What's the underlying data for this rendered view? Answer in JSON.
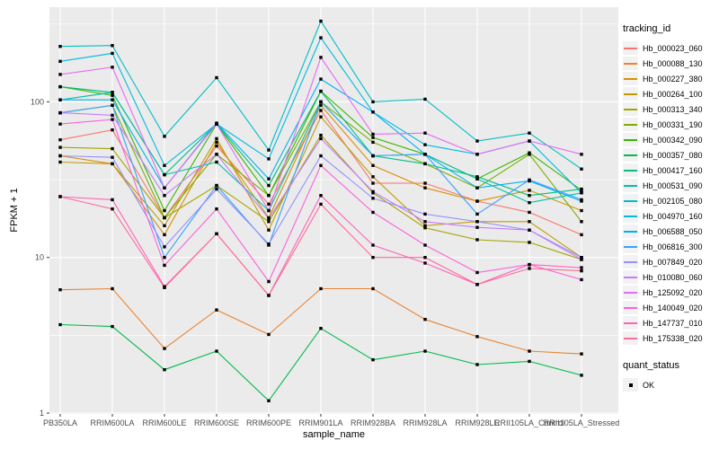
{
  "chart_data": {
    "type": "line",
    "title": "",
    "xlabel": "sample_name",
    "ylabel": "FPKM + 1",
    "y_scale": "log10",
    "ylim": [
      1,
      400
    ],
    "y_ticks": [
      1,
      10,
      100
    ],
    "y_tick_labels": [
      "1",
      "10",
      "100"
    ],
    "y_minor_ticks": [
      3.162,
      31.62,
      316.2
    ],
    "grid": "on",
    "legend_position": "right",
    "panel_bg": "#EBEBEB",
    "grid_color": "#FFFFFF",
    "axis_text_color": "#4D4D4D",
    "point_color": "#000000",
    "point_shape": "square",
    "legend_key_bg": "#F2F2F2",
    "legend_title": "tracking_id",
    "legend2": {
      "title": "quant_status",
      "items": [
        {
          "label": "OK",
          "color": "#000000",
          "shape": "square"
        }
      ]
    },
    "categories": [
      "PB350LA",
      "RRIM600LA",
      "RRIM600LE",
      "RRIM600SE",
      "RRIM600PE",
      "RRIM901LA",
      "RRIM928BA",
      "RRIM928LA",
      "RRIM928LE",
      "RRII105LA_Control",
      "RRII105LA_Stressed"
    ],
    "series": [
      {
        "name": "Hb_000023_060",
        "color": "#F8766D",
        "values": [
          57,
          66,
          18,
          52,
          22,
          88,
          30,
          30,
          23,
          19.5,
          14
        ]
      },
      {
        "name": "Hb_000088_130",
        "color": "#EA8331",
        "values": [
          6.2,
          6.3,
          2.6,
          4.6,
          3.2,
          6.3,
          6.3,
          4.0,
          3.1,
          2.5,
          2.4
        ]
      },
      {
        "name": "Hb_000227_380",
        "color": "#D89000",
        "values": [
          45,
          40,
          14,
          55,
          18,
          95,
          39,
          28,
          23,
          27,
          20
        ]
      },
      {
        "name": "Hb_000264_100",
        "color": "#C09B00",
        "values": [
          41,
          40,
          16,
          58,
          15,
          80,
          33,
          16,
          17,
          17,
          10
        ]
      },
      {
        "name": "Hb_000313_340",
        "color": "#A3A500",
        "values": [
          51,
          50,
          18,
          29,
          17,
          61,
          26,
          15.5,
          13,
          12.5,
          9.7
        ]
      },
      {
        "name": "Hb_000331_190",
        "color": "#7CAE00",
        "values": [
          85,
          95,
          18,
          46,
          25,
          100,
          55,
          40,
          28,
          46,
          17
        ]
      },
      {
        "name": "Hb_000342_090",
        "color": "#39B600",
        "values": [
          125,
          110,
          20,
          72,
          25,
          117,
          59,
          46,
          32,
          47,
          27
        ]
      },
      {
        "name": "Hb_000357_080",
        "color": "#00BB4E",
        "values": [
          3.7,
          3.6,
          1.9,
          2.5,
          1.2,
          3.5,
          2.2,
          2.5,
          2.05,
          2.15,
          1.75
        ]
      },
      {
        "name": "Hb_000417_160",
        "color": "#00BF7D",
        "values": [
          125,
          115,
          34,
          72,
          29,
          117,
          45,
          40,
          33,
          25,
          27.5
        ]
      },
      {
        "name": "Hb_000531_090",
        "color": "#00C1A3",
        "values": [
          103,
          115,
          34,
          41,
          20,
          100,
          45,
          46,
          32,
          22.5,
          26
        ]
      },
      {
        "name": "Hb_002105_080",
        "color": "#00BFC4",
        "values": [
          227,
          230,
          60,
          143,
          49,
          330,
          100,
          104,
          56,
          63,
          37
        ]
      },
      {
        "name": "Hb_004970_160",
        "color": "#00BAE0",
        "values": [
          182,
          205,
          39,
          72,
          43,
          258,
          86,
          53,
          46,
          56,
          26
        ]
      },
      {
        "name": "Hb_006588_050",
        "color": "#00B0F6",
        "values": [
          103,
          103,
          28,
          73,
          32,
          140,
          86,
          46,
          28,
          31,
          23
        ]
      },
      {
        "name": "Hb_006816_300",
        "color": "#35A2FF",
        "values": [
          85,
          95,
          10,
          29,
          12,
          100,
          45,
          46,
          19,
          31.5,
          23.5
        ]
      },
      {
        "name": "Hb_007849_020",
        "color": "#9590FF",
        "values": [
          45,
          44,
          11.7,
          27.5,
          12.2,
          45,
          24,
          19,
          17,
          15,
          10
        ]
      },
      {
        "name": "Hb_010080_060",
        "color": "#C77CFF",
        "values": [
          85,
          82,
          25,
          46,
          17.8,
          58,
          26.5,
          17,
          15.6,
          15,
          9.7
        ]
      },
      {
        "name": "Hb_125092_020",
        "color": "#E76BF3",
        "values": [
          150,
          167,
          28,
          72,
          20,
          193,
          62,
          63,
          46,
          56,
          46
        ]
      },
      {
        "name": "Hb_140049_020",
        "color": "#FA62DB",
        "values": [
          72,
          77,
          8.9,
          20.5,
          7,
          39,
          19.5,
          12,
          8,
          9,
          7.2
        ]
      },
      {
        "name": "Hb_147737_010",
        "color": "#FF62BC",
        "values": [
          24.6,
          23.5,
          6.5,
          14.2,
          5.7,
          25,
          12,
          9.2,
          6.7,
          9,
          8.6
        ]
      },
      {
        "name": "Hb_175338_020",
        "color": "#FF6A98",
        "values": [
          24.6,
          20.5,
          6.4,
          14.2,
          5.7,
          22,
          10,
          10,
          6.7,
          8.5,
          8.2
        ]
      }
    ]
  }
}
